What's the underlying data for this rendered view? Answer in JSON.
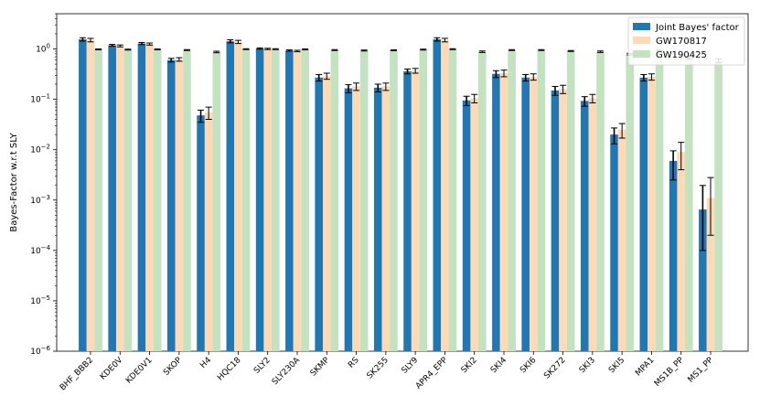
{
  "chart_data": {
    "type": "bar",
    "title": "",
    "xlabel": "",
    "ylabel": "Bayes-Factor w.r.t SLY",
    "yscale": "log",
    "ylim": [
      1e-06,
      5
    ],
    "y_ticks": [
      {
        "value": 1e-06,
        "base": "10",
        "exp": "−6"
      },
      {
        "value": 1e-05,
        "base": "10",
        "exp": "−5"
      },
      {
        "value": 0.0001,
        "base": "10",
        "exp": "−4"
      },
      {
        "value": 0.001,
        "base": "10",
        "exp": "−3"
      },
      {
        "value": 0.01,
        "base": "10",
        "exp": "−2"
      },
      {
        "value": 0.1,
        "base": "10",
        "exp": "−1"
      },
      {
        "value": 1,
        "base": "10",
        "exp": "0"
      }
    ],
    "categories": [
      "BHF_BBB2",
      "KDE0V",
      "KDE0V1",
      "SKOP",
      "H4",
      "HQC18",
      "SLY2",
      "SLY230A",
      "SKMP",
      "RS",
      "SK255",
      "SLY9",
      "APR4_EPP",
      "SKI2",
      "SKI4",
      "SKI6",
      "SK272",
      "SKI3",
      "SKI5",
      "MPA1",
      "MS1B_PP",
      "MS1_PP"
    ],
    "legend_position": "top-right",
    "series": [
      {
        "name": "Joint Bayes' factor",
        "color": "#1f77b4",
        "values": [
          1.55,
          1.18,
          1.28,
          0.6,
          0.048,
          1.42,
          1.02,
          0.93,
          0.27,
          0.165,
          0.17,
          0.36,
          1.55,
          0.095,
          0.32,
          0.27,
          0.15,
          0.093,
          0.02,
          0.27,
          0.006,
          0.00065
        ],
        "err_low": [
          0.12,
          0.05,
          0.06,
          0.05,
          0.013,
          0.1,
          0.03,
          0.03,
          0.04,
          0.03,
          0.03,
          0.04,
          0.12,
          0.02,
          0.05,
          0.04,
          0.03,
          0.02,
          0.007,
          0.04,
          0.0035,
          0.00055
        ],
        "err_high": [
          0.12,
          0.05,
          0.06,
          0.05,
          0.013,
          0.1,
          0.03,
          0.03,
          0.04,
          0.03,
          0.03,
          0.04,
          0.12,
          0.02,
          0.05,
          0.04,
          0.03,
          0.02,
          0.007,
          0.04,
          0.0035,
          0.0013
        ]
      },
      {
        "name": "GW170817",
        "color": "#fdd9b5",
        "values": [
          1.5,
          1.15,
          1.25,
          0.62,
          0.055,
          1.38,
          1.0,
          0.91,
          0.29,
          0.18,
          0.18,
          0.37,
          1.5,
          0.105,
          0.33,
          0.28,
          0.16,
          0.105,
          0.025,
          0.28,
          0.009,
          0.0011
        ],
        "err_low": [
          0.12,
          0.05,
          0.06,
          0.05,
          0.015,
          0.1,
          0.03,
          0.03,
          0.04,
          0.03,
          0.03,
          0.04,
          0.12,
          0.02,
          0.05,
          0.04,
          0.03,
          0.02,
          0.008,
          0.04,
          0.005,
          0.0009
        ],
        "err_high": [
          0.12,
          0.05,
          0.06,
          0.05,
          0.015,
          0.1,
          0.03,
          0.03,
          0.04,
          0.03,
          0.03,
          0.04,
          0.12,
          0.02,
          0.05,
          0.04,
          0.03,
          0.02,
          0.008,
          0.04,
          0.005,
          0.0017
        ]
      },
      {
        "name": "GW190425",
        "color": "#c3e2c0",
        "values": [
          0.98,
          0.97,
          0.98,
          0.95,
          0.87,
          0.99,
          0.99,
          0.98,
          0.95,
          0.93,
          0.94,
          0.97,
          0.99,
          0.88,
          0.95,
          0.95,
          0.91,
          0.88,
          0.79,
          0.95,
          0.67,
          0.58
        ],
        "err_low": [
          0.02,
          0.02,
          0.02,
          0.02,
          0.03,
          0.02,
          0.02,
          0.02,
          0.02,
          0.02,
          0.02,
          0.02,
          0.02,
          0.03,
          0.02,
          0.02,
          0.02,
          0.03,
          0.03,
          0.02,
          0.04,
          0.05
        ],
        "err_high": [
          0.02,
          0.02,
          0.02,
          0.02,
          0.03,
          0.02,
          0.02,
          0.02,
          0.02,
          0.02,
          0.02,
          0.02,
          0.02,
          0.03,
          0.02,
          0.02,
          0.02,
          0.03,
          0.03,
          0.02,
          0.04,
          0.05
        ]
      }
    ]
  }
}
